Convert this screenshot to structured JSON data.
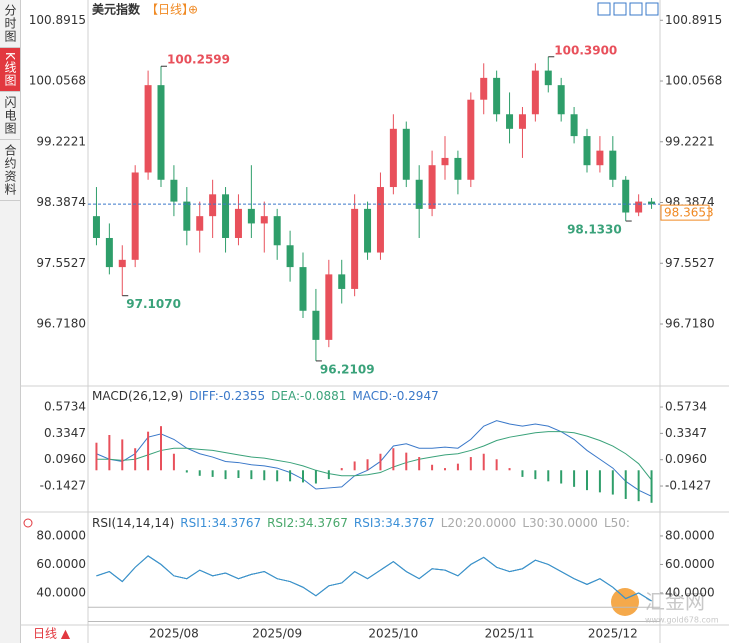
{
  "sidebar": {
    "tabs": [
      "分时图",
      "K线图",
      "闪电图",
      "合约资料"
    ],
    "active": 1
  },
  "period_button": "日线 ▲",
  "watermark": {
    "name": "汇金网",
    "url": "www.gold678.com"
  },
  "chart_data": [
    {
      "type": "candlestick",
      "title": "美元指数",
      "period": "【日线】",
      "title_icon": "⊕",
      "up_color": "#e8505b",
      "down_color": "#2e9e6a",
      "ylim": [
        95.88,
        101.17
      ],
      "yticks": [
        100.8915,
        100.0568,
        99.2221,
        98.3874,
        97.5527,
        {
          "value": 96.718,
          "label": "96.7180"
        }
      ],
      "current": {
        "value": 98.3653,
        "label": "98.3653"
      },
      "open": [
        98.2,
        97.9,
        97.5,
        97.6,
        98.8,
        100.0,
        98.7,
        98.4,
        98.0,
        98.2,
        98.5,
        97.9,
        98.3,
        98.1,
        98.2,
        97.8,
        97.5,
        96.9,
        96.5,
        97.4,
        97.2,
        98.3,
        97.7,
        98.6,
        99.4,
        98.7,
        98.3,
        98.9,
        99.0,
        98.7,
        99.8,
        100.1,
        99.6,
        99.4,
        99.6,
        100.2,
        100.0,
        99.6,
        99.3,
        98.9,
        99.1,
        98.7,
        98.25,
        98.4
      ],
      "high": [
        98.6,
        98.1,
        97.8,
        98.9,
        100.2,
        100.2599,
        98.9,
        98.6,
        98.4,
        98.7,
        98.6,
        98.5,
        98.9,
        98.4,
        98.3,
        98.0,
        97.7,
        97.2,
        97.6,
        97.6,
        98.5,
        98.4,
        98.8,
        99.6,
        99.5,
        98.9,
        99.1,
        99.3,
        99.1,
        99.9,
        100.3,
        100.2,
        99.9,
        99.7,
        100.3,
        100.39,
        100.1,
        99.7,
        99.4,
        99.3,
        99.3,
        98.75,
        98.5,
        98.45
      ],
      "low": [
        97.8,
        97.4,
        97.107,
        97.5,
        98.7,
        98.6,
        98.2,
        97.8,
        97.7,
        97.9,
        97.7,
        97.8,
        97.9,
        97.7,
        97.6,
        97.3,
        96.8,
        96.2109,
        96.4,
        97.0,
        97.1,
        97.6,
        97.6,
        98.5,
        98.6,
        97.9,
        98.2,
        98.7,
        98.5,
        98.6,
        99.6,
        99.5,
        99.2,
        99.0,
        99.5,
        99.9,
        99.5,
        99.2,
        98.8,
        98.8,
        98.6,
        98.133,
        98.2,
        98.3
      ],
      "close": [
        97.9,
        97.5,
        97.6,
        98.8,
        100.0,
        98.7,
        98.4,
        98.0,
        98.2,
        98.5,
        97.9,
        98.3,
        98.1,
        98.2,
        97.8,
        97.5,
        96.9,
        96.5,
        97.4,
        97.2,
        98.3,
        97.7,
        98.6,
        99.4,
        98.7,
        98.3,
        98.9,
        99.0,
        98.7,
        99.8,
        100.1,
        99.6,
        99.4,
        99.6,
        100.2,
        100.0,
        99.6,
        99.3,
        98.9,
        99.1,
        98.7,
        98.25,
        98.4,
        98.3653
      ],
      "high_labels": [
        null,
        null,
        null,
        null,
        null,
        "100.2599",
        null,
        null,
        null,
        null,
        null,
        null,
        null,
        null,
        null,
        null,
        null,
        null,
        null,
        null,
        null,
        null,
        null,
        null,
        null,
        null,
        null,
        null,
        null,
        null,
        null,
        null,
        null,
        null,
        null,
        "100.3900",
        null,
        null,
        null,
        null,
        null,
        null,
        null,
        null
      ],
      "low_labels": [
        null,
        null,
        "97.1070",
        null,
        null,
        null,
        null,
        null,
        null,
        null,
        null,
        null,
        null,
        null,
        null,
        null,
        null,
        "96.2109",
        null,
        null,
        null,
        null,
        null,
        null,
        null,
        null,
        null,
        null,
        null,
        null,
        null,
        null,
        null,
        null,
        null,
        null,
        null,
        null,
        null,
        null,
        null,
        "98.1330",
        null,
        null
      ]
    },
    {
      "type": "macd",
      "title": "MACD(26,12,9)",
      "ylim": [
        -0.36,
        0.755
      ],
      "yticks": [
        0.5734,
        0.3347,
        {
          "value": 0.096,
          "label": "0.0960"
        },
        -0.1427
      ],
      "series": [
        {
          "name": "DIFF:",
          "color": "#3a78c9",
          "values": [
            0.15,
            0.1,
            0.08,
            0.15,
            0.3,
            0.33,
            0.28,
            0.2,
            0.15,
            0.12,
            0.08,
            0.07,
            0.05,
            0.04,
            0.02,
            -0.02,
            -0.08,
            -0.17,
            -0.16,
            -0.15,
            -0.05,
            0.0,
            0.08,
            0.22,
            0.24,
            0.2,
            0.2,
            0.21,
            0.2,
            0.28,
            0.4,
            0.45,
            0.42,
            0.4,
            0.42,
            0.4,
            0.35,
            0.28,
            0.18,
            0.1,
            0.02,
            -0.1,
            -0.18,
            -0.2355
          ]
        },
        {
          "name": "DEA:",
          "color": "#3aa27a",
          "values": [
            0.1,
            0.1,
            0.09,
            0.1,
            0.14,
            0.18,
            0.2,
            0.2,
            0.19,
            0.18,
            0.16,
            0.14,
            0.12,
            0.11,
            0.09,
            0.07,
            0.04,
            0.0,
            -0.03,
            -0.05,
            -0.05,
            -0.04,
            -0.02,
            0.03,
            0.07,
            0.1,
            0.12,
            0.14,
            0.15,
            0.18,
            0.22,
            0.27,
            0.3,
            0.32,
            0.34,
            0.35,
            0.35,
            0.34,
            0.31,
            0.27,
            0.22,
            0.15,
            0.06,
            -0.0881
          ]
        },
        {
          "name": "MACD:",
          "color": "#3a78c9",
          "bars": true,
          "up_color": "#e8505b",
          "down_color": "#2e9e6a",
          "values": [
            0.25,
            0.32,
            0.28,
            0.2,
            0.35,
            0.4,
            0.15,
            -0.02,
            -0.05,
            -0.06,
            -0.08,
            -0.07,
            -0.08,
            -0.09,
            -0.1,
            -0.1,
            -0.11,
            -0.12,
            -0.08,
            0.02,
            0.08,
            0.1,
            0.15,
            0.2,
            0.16,
            0.12,
            0.05,
            0.02,
            0.06,
            0.12,
            0.15,
            0.1,
            0.02,
            -0.06,
            -0.08,
            -0.1,
            -0.12,
            -0.15,
            -0.18,
            -0.2,
            -0.22,
            -0.26,
            -0.28,
            -0.2947
          ]
        }
      ]
    },
    {
      "type": "rsi",
      "title": "RSI(14,14,14)",
      "ylim": [
        17.5,
        93.3
      ],
      "yticks": [
        {
          "value": 80,
          "label": "80.0000"
        },
        {
          "value": 60,
          "label": "60.0000"
        },
        {
          "value": 40,
          "label": "40.0000"
        }
      ],
      "series": [
        {
          "name": "RSI1:",
          "color": "#3b8fd6",
          "values": [
            52,
            55,
            48,
            58,
            66,
            60,
            52,
            50,
            56,
            52,
            54,
            50,
            53,
            55,
            50,
            48,
            44,
            38,
            45,
            47,
            55,
            50,
            56,
            62,
            55,
            50,
            57,
            56,
            52,
            60,
            65,
            58,
            55,
            57,
            63,
            60,
            55,
            50,
            46,
            50,
            44,
            36,
            40,
            34.3767
          ]
        },
        {
          "name": "RSI2:",
          "color": "#4aa86c",
          "values": [
            52,
            55,
            48,
            58,
            66,
            60,
            52,
            50,
            56,
            52,
            54,
            50,
            53,
            55,
            50,
            48,
            44,
            38,
            45,
            47,
            55,
            50,
            56,
            62,
            55,
            50,
            57,
            56,
            52,
            60,
            65,
            58,
            55,
            57,
            63,
            60,
            55,
            50,
            46,
            50,
            44,
            36,
            40,
            34.3767
          ]
        },
        {
          "name": "RSI3:",
          "color": "#3b8fd6",
          "values": [
            52,
            55,
            48,
            58,
            66,
            60,
            52,
            50,
            56,
            52,
            54,
            50,
            53,
            55,
            50,
            48,
            44,
            38,
            45,
            47,
            55,
            50,
            56,
            62,
            55,
            50,
            57,
            56,
            52,
            60,
            65,
            58,
            55,
            57,
            63,
            60,
            55,
            50,
            46,
            50,
            44,
            36,
            40,
            34.3767
          ]
        }
      ],
      "levels": [
        {
          "name": "L20:",
          "value": 20,
          "label": "20.0000"
        },
        {
          "name": "L30:",
          "value": 30,
          "label": "30.0000"
        },
        {
          "name": "L50:"
        }
      ],
      "categories": [
        null,
        null,
        null,
        null,
        null,
        null,
        "2025/08",
        null,
        null,
        null,
        null,
        null,
        null,
        null,
        "2025/09",
        null,
        null,
        null,
        null,
        null,
        null,
        null,
        null,
        "2025/10",
        null,
        null,
        null,
        null,
        null,
        null,
        null,
        null,
        "2025/11",
        null,
        null,
        null,
        null,
        null,
        null,
        null,
        "2025/12",
        null,
        null,
        null
      ]
    }
  ]
}
